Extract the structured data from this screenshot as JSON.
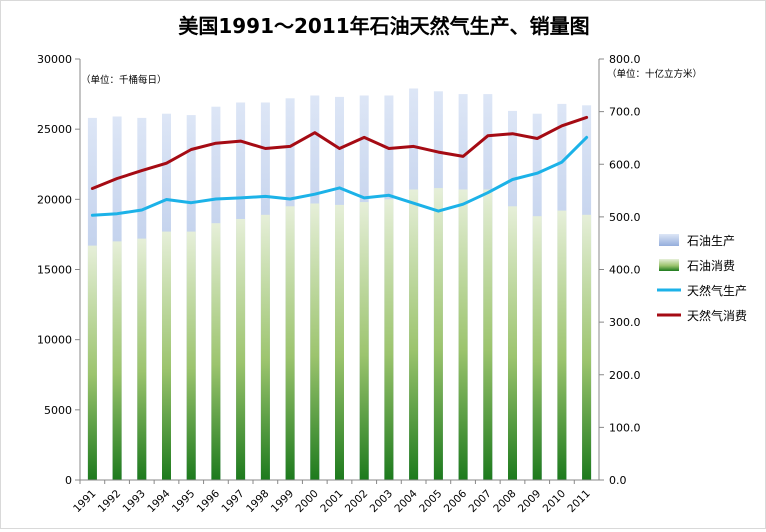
{
  "chart_data": {
    "type": "bar",
    "title": "美国1991～2011年石油天然气生产、销量图",
    "left_axis_unit": "（单位：千桶每日）",
    "right_axis_unit": "（单位：十亿立方米）",
    "categories": [
      "1991",
      "1992",
      "1993",
      "1994",
      "1995",
      "1996",
      "1997",
      "1998",
      "1999",
      "2000",
      "2001",
      "2002",
      "2003",
      "2004",
      "2005",
      "2006",
      "2007",
      "2008",
      "2009",
      "2010",
      "2011"
    ],
    "y_left": {
      "min": 0,
      "max": 30000,
      "ticks": [
        "0",
        "5000",
        "10000",
        "15000",
        "20000",
        "25000",
        "30000"
      ]
    },
    "y_right": {
      "min": 0,
      "max": 800,
      "ticks": [
        "0.0",
        "100.0",
        "200.0",
        "300.0",
        "400.0",
        "500.0",
        "600.0",
        "700.0",
        "800.0"
      ]
    },
    "series": [
      {
        "name": "石油生产",
        "kind": "bar",
        "axis": "left",
        "color": "#b4c7e7",
        "values": [
          25800,
          25900,
          25800,
          26100,
          26000,
          26600,
          26900,
          26900,
          27200,
          27400,
          27300,
          27400,
          27400,
          27900,
          27700,
          27500,
          27500,
          26300,
          26100,
          26800,
          26700
        ]
      },
      {
        "name": "石油消费",
        "kind": "bar",
        "axis": "left",
        "color": "#70ad47",
        "values": [
          16700,
          17000,
          17200,
          17700,
          17700,
          18300,
          18600,
          18900,
          19500,
          19700,
          19600,
          19800,
          20000,
          20700,
          20800,
          20700,
          20700,
          19500,
          18800,
          19200,
          18900
        ]
      },
      {
        "name": "天然气生产",
        "kind": "line",
        "axis": "right",
        "color": "#1cb2e8",
        "values": [
          503,
          506,
          513,
          533,
          527,
          534,
          536,
          539,
          534,
          543,
          555,
          536,
          541,
          526,
          511,
          524,
          546,
          571,
          583,
          604,
          651
        ]
      },
      {
        "name": "天然气消费",
        "kind": "line",
        "axis": "right",
        "color": "#a50b14",
        "values": [
          554,
          573,
          588,
          602,
          628,
          640,
          644,
          630,
          634,
          660,
          630,
          651,
          630,
          634,
          623,
          615,
          654,
          658,
          649,
          673,
          689
        ]
      }
    ],
    "grid": false,
    "legend_position": "right"
  }
}
